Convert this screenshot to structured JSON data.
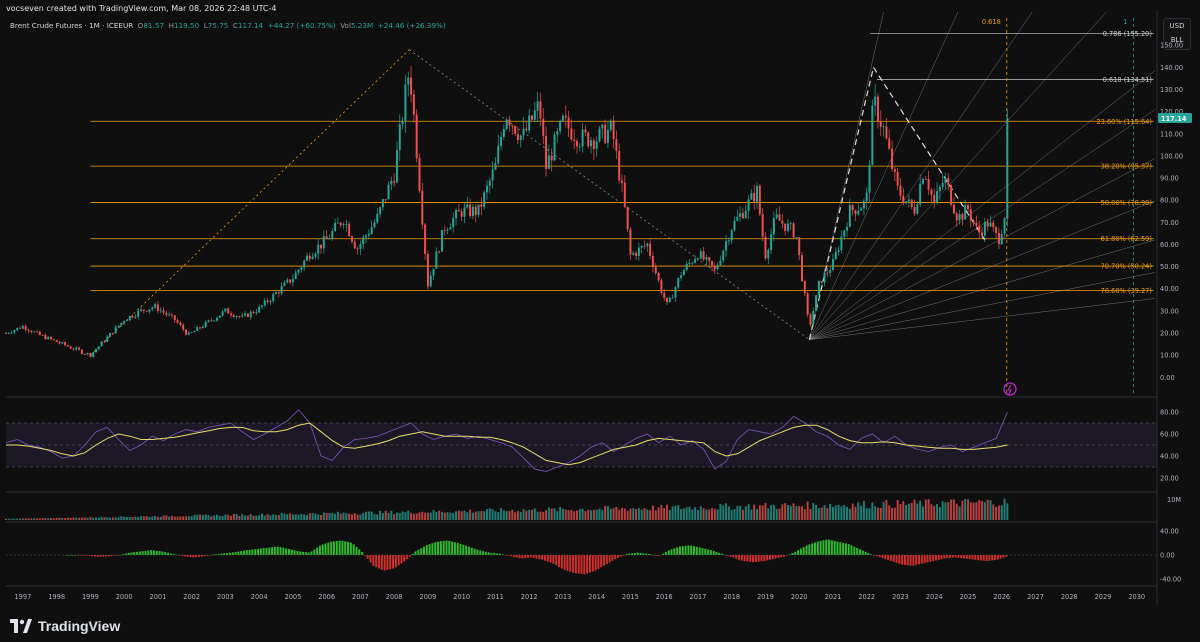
{
  "header": {
    "created_by": "vocseven created with TradingView.com, Mar 08, 2026 22:48 UTC-4"
  },
  "symbol": {
    "name": "Brent Crude Futures · 1M · ICEEUR",
    "open_label": "O",
    "open": "81.57",
    "high_label": "H",
    "high": "119.50",
    "low_label": "L",
    "low": "75.75",
    "close_label": "C",
    "close": "117.14",
    "change": "+44.27 (+60.75%)",
    "vol_label": "Vol",
    "vol": "5.23M",
    "vol_change": "+24.46 (+26.39%)"
  },
  "scale_controls": {
    "currency": "USD",
    "unit": "BLL"
  },
  "brand": {
    "name": "TradingView"
  },
  "colors": {
    "up": "#26a69a",
    "down": "#ef5350",
    "fib": "#f59e0b",
    "rsi_line": "#7e57c2",
    "rsi_ma": "#e8e06a",
    "hist_up": "#2ebd2e",
    "hist_down": "#d32f2f",
    "last_price_bg": "#26a69a",
    "background": "#0f0f0f"
  },
  "chart_data": [
    {
      "type": "candlestick",
      "panel": "price",
      "interval": "1M",
      "x_axis_years": [
        "1997",
        "1998",
        "1999",
        "2000",
        "2001",
        "2002",
        "2003",
        "2004",
        "2005",
        "2006",
        "2007",
        "2008",
        "2009",
        "2010",
        "2011",
        "2012",
        "2013",
        "2014",
        "2015",
        "2016",
        "2017",
        "2018",
        "2019",
        "2020",
        "2021",
        "2022",
        "2023",
        "2024",
        "2025",
        "2026",
        "2027",
        "2028",
        "2029",
        "2030"
      ],
      "xlim": [
        1996.5,
        2030.6
      ],
      "ylim": [
        -8,
        165
      ],
      "y_ticks": [
        "0.00",
        "10.00",
        "20.00",
        "30.00",
        "40.00",
        "50.00",
        "60.00",
        "70.00",
        "80.00",
        "90.00",
        "100.00",
        "110.00",
        "120.00",
        "130.00",
        "140.00",
        "150.00"
      ],
      "last_price": "117.14",
      "price_path": [
        [
          1996.5,
          20
        ],
        [
          1997.0,
          23
        ],
        [
          1997.5,
          19
        ],
        [
          1998.0,
          16
        ],
        [
          1998.5,
          13
        ],
        [
          1998.99,
          10
        ],
        [
          1999.5,
          18
        ],
        [
          2000.0,
          26
        ],
        [
          2000.5,
          30
        ],
        [
          2000.9,
          32
        ],
        [
          2001.5,
          26
        ],
        [
          2001.9,
          19
        ],
        [
          2002.5,
          25
        ],
        [
          2003.0,
          30
        ],
        [
          2003.5,
          27
        ],
        [
          2004.0,
          31
        ],
        [
          2004.5,
          38
        ],
        [
          2005.0,
          45
        ],
        [
          2005.5,
          56
        ],
        [
          2006.0,
          62
        ],
        [
          2006.5,
          72
        ],
        [
          2006.9,
          58
        ],
        [
          2007.5,
          72
        ],
        [
          2008.0,
          92
        ],
        [
          2008.45,
          140
        ],
        [
          2008.6,
          115
        ],
        [
          2008.9,
          60
        ],
        [
          2009.0,
          42
        ],
        [
          2009.5,
          68
        ],
        [
          2010.0,
          75
        ],
        [
          2010.5,
          75
        ],
        [
          2011.0,
          95
        ],
        [
          2011.3,
          120
        ],
        [
          2011.8,
          108
        ],
        [
          2012.3,
          123
        ],
        [
          2012.5,
          95
        ],
        [
          2013.0,
          115
        ],
        [
          2013.5,
          108
        ],
        [
          2014.0,
          108
        ],
        [
          2014.45,
          112
        ],
        [
          2014.8,
          80
        ],
        [
          2015.0,
          55
        ],
        [
          2015.5,
          60
        ],
        [
          2015.9,
          40
        ],
        [
          2016.1,
          32
        ],
        [
          2016.5,
          47
        ],
        [
          2017.0,
          56
        ],
        [
          2017.5,
          48
        ],
        [
          2018.0,
          68
        ],
        [
          2018.75,
          84
        ],
        [
          2018.99,
          55
        ],
        [
          2019.3,
          72
        ],
        [
          2019.9,
          65
        ],
        [
          2020.3,
          22
        ],
        [
          2020.6,
          43
        ],
        [
          2020.99,
          51
        ],
        [
          2021.5,
          75
        ],
        [
          2021.99,
          79
        ],
        [
          2022.2,
          125
        ],
        [
          2022.5,
          112
        ],
        [
          2022.9,
          85
        ],
        [
          2023.4,
          75
        ],
        [
          2023.7,
          95
        ],
        [
          2023.99,
          78
        ],
        [
          2024.3,
          90
        ],
        [
          2024.7,
          72
        ],
        [
          2025.0,
          76
        ],
        [
          2025.3,
          65
        ],
        [
          2025.6,
          70
        ],
        [
          2025.9,
          62
        ],
        [
          2026.08,
          72
        ],
        [
          2026.17,
          117.14
        ]
      ],
      "fibonacci_retracement": [
        {
          "label": "23.60% (115.64)",
          "value": 115.64
        },
        {
          "label": "38.20% (95.37)",
          "value": 95.37
        },
        {
          "label": "50.00% (78.98)",
          "value": 78.98
        },
        {
          "label": "61.80% (62.59)",
          "value": 62.59
        },
        {
          "label": "70.70% (50.24)",
          "value": 50.24
        },
        {
          "label": "78.60% (39.27)",
          "value": 39.27
        }
      ],
      "fibonacci_extension": [
        {
          "label": "0.786 (155.20)",
          "value": 155.2
        },
        {
          "label": "0.618 (134.51)",
          "value": 134.51
        }
      ],
      "fib_time_marks": [
        {
          "label": "0.618",
          "x": 2026.15
        },
        {
          "label": "1",
          "x": 2029.9
        }
      ],
      "trendlines": [
        {
          "style": "dashed-orange",
          "from": [
            1999.0,
            10
          ],
          "to": [
            2008.45,
            148
          ]
        },
        {
          "style": "dashed-gray",
          "from": [
            2008.45,
            148
          ],
          "to": [
            2020.3,
            17
          ]
        },
        {
          "style": "dashed-white",
          "from": [
            2020.3,
            17
          ],
          "to": [
            2022.2,
            140
          ]
        },
        {
          "style": "dashed-white",
          "from": [
            2022.2,
            140
          ],
          "to": [
            2025.5,
            62
          ]
        }
      ],
      "gann_fan_origin": [
        2020.3,
        17
      ]
    },
    {
      "type": "line",
      "panel": "rsi",
      "ylim": [
        10,
        90
      ],
      "y_ticks": [
        "80.00",
        "60.00",
        "40.00",
        "20.00"
      ],
      "band": [
        30,
        70
      ],
      "series": [
        {
          "key": "rsi",
          "values": [
            52,
            55,
            50,
            48,
            44,
            38,
            40,
            50,
            62,
            66,
            55,
            45,
            50,
            58,
            54,
            60,
            64,
            62,
            66,
            68,
            70,
            62,
            55,
            60,
            66,
            72,
            82,
            70,
            40,
            36,
            48,
            55,
            56,
            58,
            62,
            66,
            70,
            60,
            55,
            58,
            60,
            56,
            58,
            55,
            52,
            48,
            38,
            28,
            26,
            30,
            34,
            40,
            48,
            52,
            44,
            50,
            56,
            60,
            52,
            58,
            50,
            54,
            46,
            28,
            35,
            55,
            64,
            62,
            60,
            66,
            76,
            70,
            62,
            58,
            50,
            46,
            56,
            60,
            52,
            58,
            50,
            46,
            44,
            48,
            50,
            44,
            48,
            52,
            56,
            80
          ]
        },
        {
          "key": "rsi_ma",
          "values": [
            50,
            50,
            49,
            47,
            45,
            42,
            40,
            43,
            50,
            56,
            60,
            58,
            55,
            55,
            56,
            57,
            59,
            61,
            63,
            65,
            66,
            66,
            63,
            62,
            62,
            64,
            68,
            70,
            62,
            54,
            48,
            47,
            49,
            51,
            54,
            58,
            60,
            62,
            60,
            58,
            58,
            58,
            57,
            57,
            55,
            52,
            48,
            42,
            36,
            34,
            32,
            34,
            38,
            42,
            46,
            48,
            50,
            54,
            56,
            55,
            54,
            53,
            52,
            44,
            40,
            42,
            48,
            54,
            58,
            62,
            66,
            68,
            68,
            64,
            58,
            54,
            52,
            52,
            53,
            52,
            50,
            49,
            48,
            47,
            47,
            46,
            46,
            47,
            48,
            50
          ]
        }
      ]
    },
    {
      "type": "bar",
      "panel": "volume",
      "y_ticks": [
        "10M"
      ],
      "ylim": [
        0,
        10
      ]
    },
    {
      "type": "bar",
      "panel": "oscillator_histogram",
      "ylim": [
        -48,
        48
      ],
      "y_ticks": [
        "40.00",
        "0.00",
        "-40.00"
      ],
      "values": [
        0,
        0,
        -1,
        -3,
        -2,
        0,
        4,
        6,
        8,
        6,
        2,
        -2,
        -4,
        -2,
        1,
        3,
        5,
        8,
        10,
        12,
        14,
        10,
        6,
        4,
        16,
        22,
        24,
        20,
        4,
        -18,
        -26,
        -22,
        -10,
        6,
        16,
        22,
        24,
        20,
        14,
        8,
        4,
        2,
        -2,
        -6,
        -4,
        -8,
        -14,
        -24,
        -30,
        -32,
        -26,
        -16,
        -6,
        2,
        4,
        2,
        -2,
        8,
        14,
        16,
        12,
        8,
        2,
        -4,
        -10,
        -12,
        -10,
        -6,
        -2,
        6,
        16,
        22,
        26,
        22,
        18,
        10,
        2,
        -4,
        -10,
        -16,
        -18,
        -14,
        -10,
        -6,
        -4,
        -6,
        -8,
        -10,
        -8,
        -2
      ]
    }
  ]
}
